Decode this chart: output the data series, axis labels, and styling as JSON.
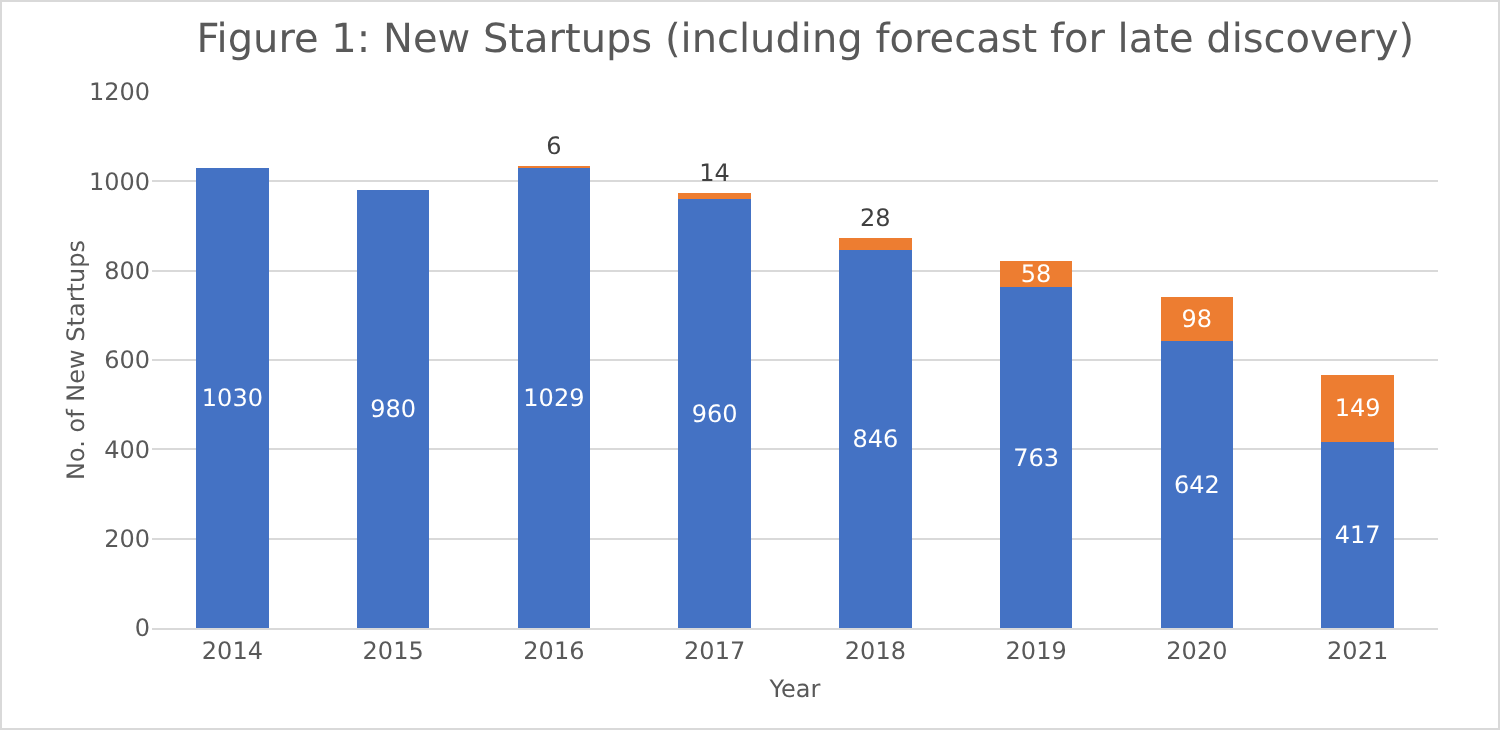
{
  "chart_data": {
    "type": "bar",
    "title": "Figure 1: New Startups (including forecast for late discovery)",
    "xlabel": "Year",
    "ylabel": "No. of New Startups",
    "categories": [
      "2014",
      "2015",
      "2016",
      "2017",
      "2018",
      "2019",
      "2020",
      "2021"
    ],
    "series": [
      {
        "color": "#4472c4",
        "values": [
          1030,
          980,
          1029,
          960,
          846,
          763,
          642,
          417
        ]
      },
      {
        "color": "#ed7d31",
        "values": [
          null,
          null,
          6,
          14,
          28,
          58,
          98,
          149
        ]
      }
    ],
    "stacked": true,
    "data_labels": true,
    "ylim": [
      0,
      1200
    ],
    "yticks": [
      0,
      200,
      400,
      600,
      800,
      1000,
      1200
    ],
    "grid": "y"
  }
}
